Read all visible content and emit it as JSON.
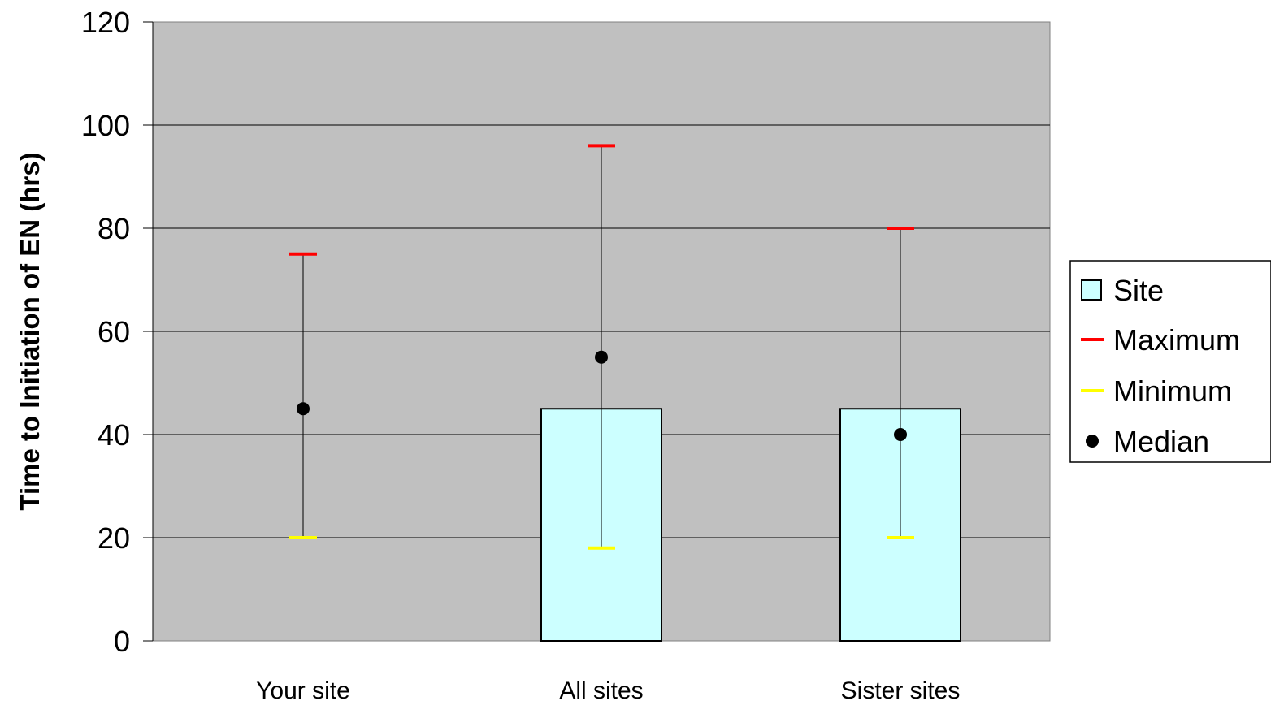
{
  "chart_data": {
    "type": "bar",
    "title": "",
    "xlabel": "",
    "ylabel": "Time to Initiation of EN (hrs)",
    "categories": [
      "Your site",
      "All sites",
      "Sister sites"
    ],
    "ylim": [
      0,
      120
    ],
    "yticks": [
      "0",
      "20",
      "40",
      "60",
      "80",
      "100",
      "120"
    ],
    "grid": true,
    "legend_position": "right",
    "series": [
      {
        "name": "Site",
        "type": "bar",
        "values": [
          null,
          45,
          45
        ],
        "color": "#ccffff"
      },
      {
        "name": "Maximum",
        "type": "marker",
        "values": [
          75,
          96,
          80
        ],
        "color": "#ff0000"
      },
      {
        "name": "Minimum",
        "type": "marker",
        "values": [
          20,
          18,
          20
        ],
        "color": "#ffff00"
      },
      {
        "name": "Median",
        "type": "point",
        "values": [
          45,
          55,
          40
        ],
        "color": "#000000"
      }
    ],
    "plot_background": "#c0c0c0"
  }
}
